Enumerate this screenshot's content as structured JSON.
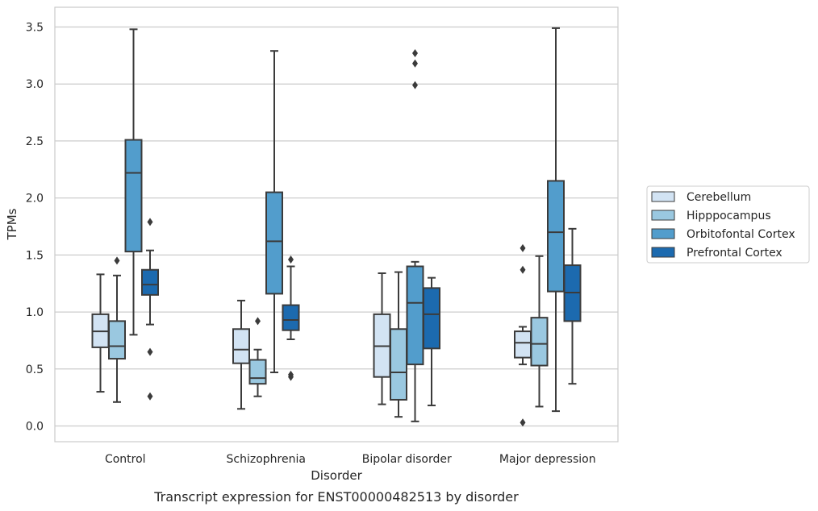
{
  "chart_data": {
    "type": "boxplot",
    "caption": "Transcript expression for ENST00000482513 by disorder",
    "xlabel": "Disorder",
    "ylabel": "TPMs",
    "ylim": [
      -0.14,
      3.67
    ],
    "yticks": [
      "0.0",
      "0.5",
      "1.0",
      "1.5",
      "2.0",
      "2.5",
      "3.0",
      "3.5"
    ],
    "grid": "horizontal",
    "legend_position": "right",
    "categories": [
      "Control",
      "Schizophrenia",
      "Bipolar disorder",
      "Major depression"
    ],
    "series": [
      {
        "name": "Cerebellum",
        "color": "#d2e3f3",
        "boxes": [
          {
            "whisker_low": 0.3,
            "q1": 0.69,
            "median": 0.83,
            "q3": 0.98,
            "whisker_high": 1.33,
            "outliers": []
          },
          {
            "whisker_low": 0.15,
            "q1": 0.55,
            "median": 0.67,
            "q3": 0.85,
            "whisker_high": 1.1,
            "outliers": []
          },
          {
            "whisker_low": 0.19,
            "q1": 0.43,
            "median": 0.7,
            "q3": 0.98,
            "whisker_high": 1.34,
            "outliers": []
          },
          {
            "whisker_low": 0.54,
            "q1": 0.6,
            "median": 0.73,
            "q3": 0.83,
            "whisker_high": 0.87,
            "outliers": [
              1.56,
              1.37,
              0.03
            ]
          }
        ]
      },
      {
        "name": "Hipppocampus",
        "color": "#9ac8e0",
        "boxes": [
          {
            "whisker_low": 0.21,
            "q1": 0.59,
            "median": 0.7,
            "q3": 0.92,
            "whisker_high": 1.32,
            "outliers": [
              1.45
            ]
          },
          {
            "whisker_low": 0.26,
            "q1": 0.37,
            "median": 0.42,
            "q3": 0.58,
            "whisker_high": 0.67,
            "outliers": [
              0.92
            ]
          },
          {
            "whisker_low": 0.08,
            "q1": 0.23,
            "median": 0.47,
            "q3": 0.85,
            "whisker_high": 1.35,
            "outliers": []
          },
          {
            "whisker_low": 0.17,
            "q1": 0.53,
            "median": 0.72,
            "q3": 0.95,
            "whisker_high": 1.49,
            "outliers": []
          }
        ]
      },
      {
        "name": "Orbitofontal Cortex",
        "color": "#529dcc",
        "boxes": [
          {
            "whisker_low": 0.8,
            "q1": 1.53,
            "median": 2.22,
            "q3": 2.51,
            "whisker_high": 3.48,
            "outliers": []
          },
          {
            "whisker_low": 0.47,
            "q1": 1.16,
            "median": 1.62,
            "q3": 2.05,
            "whisker_high": 3.29,
            "outliers": []
          },
          {
            "whisker_low": 0.04,
            "q1": 0.54,
            "median": 1.08,
            "q3": 1.4,
            "whisker_high": 1.44,
            "outliers": [
              3.27,
              3.18,
              2.99
            ]
          },
          {
            "whisker_low": 0.13,
            "q1": 1.18,
            "median": 1.7,
            "q3": 2.15,
            "whisker_high": 3.49,
            "outliers": []
          }
        ]
      },
      {
        "name": "Prefrontal Cortex",
        "color": "#1c6aaf",
        "boxes": [
          {
            "whisker_low": 0.89,
            "q1": 1.15,
            "median": 1.24,
            "q3": 1.37,
            "whisker_high": 1.54,
            "outliers": [
              1.79,
              0.65,
              0.26
            ]
          },
          {
            "whisker_low": 0.76,
            "q1": 0.84,
            "median": 0.93,
            "q3": 1.06,
            "whisker_high": 1.4,
            "outliers": [
              1.46,
              0.45,
              0.43
            ]
          },
          {
            "whisker_low": 0.18,
            "q1": 0.68,
            "median": 0.98,
            "q3": 1.21,
            "whisker_high": 1.3,
            "outliers": []
          },
          {
            "whisker_low": 0.37,
            "q1": 0.92,
            "median": 1.17,
            "q3": 1.41,
            "whisker_high": 1.73,
            "outliers": []
          }
        ]
      }
    ]
  }
}
